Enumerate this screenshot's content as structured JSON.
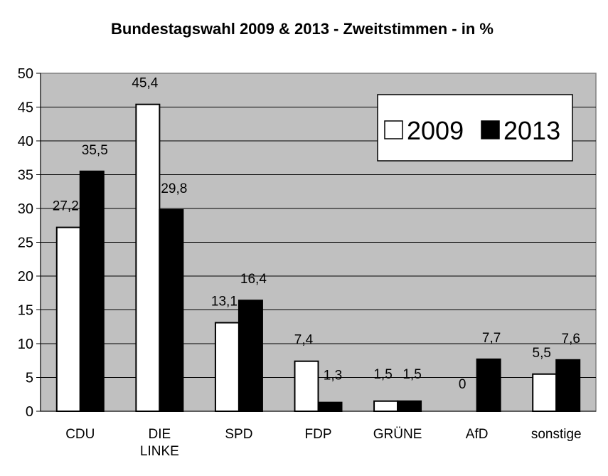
{
  "chart_data": {
    "type": "bar",
    "title": "Bundestagswahl 2009 & 2013 - Zweitstimmen - in %",
    "xlabel": "",
    "ylabel": "",
    "ylim": [
      0,
      50
    ],
    "yticks": [
      "0",
      "5",
      "10",
      "15",
      "20",
      "25",
      "30",
      "35",
      "40",
      "45",
      "50"
    ],
    "grid": true,
    "legend_position": "top-right",
    "categories": [
      "CDU",
      "DIE LINKE",
      "SPD",
      "FDP",
      "GRÜNE",
      "AfD",
      "sonstige"
    ],
    "series": [
      {
        "name": "2009",
        "color": "#ffffff",
        "values": [
          27.2,
          45.4,
          13.1,
          7.4,
          1.5,
          0,
          5.5
        ],
        "labels": [
          "27,2",
          "45,4",
          "13,1",
          "7,4",
          "1,5",
          "0",
          "5,5"
        ]
      },
      {
        "name": "2013",
        "color": "#000000",
        "values": [
          35.5,
          29.8,
          16.4,
          1.3,
          1.5,
          7.7,
          7.6
        ],
        "labels": [
          "35,5",
          "29,8",
          "16,4",
          "1,3",
          "1,5",
          "7,7",
          "7,6"
        ]
      }
    ]
  }
}
